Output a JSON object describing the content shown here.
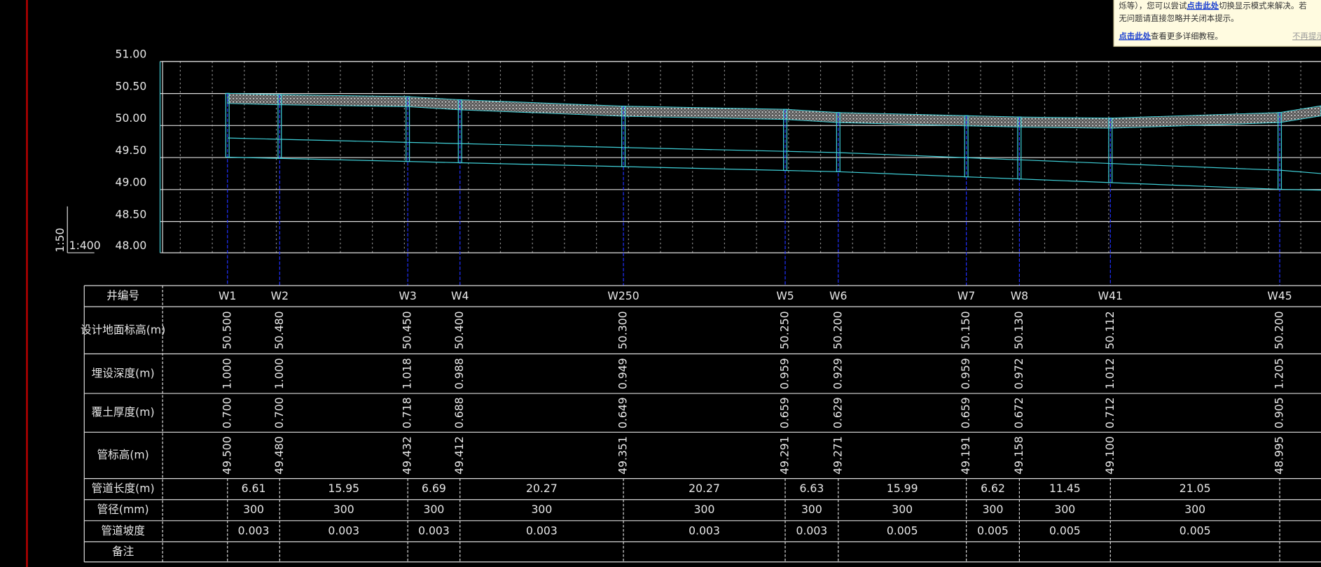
{
  "notice": {
    "line1a": "烁等），您可以尝试",
    "line1link": "点击此处",
    "line1b": "切换显示模式来解决。若",
    "line2": "无问题请直接忽略并关闭本提示。",
    "link2": "点击此处",
    "line3": "查看更多详细教程。",
    "dismiss": "不再提示"
  },
  "scale": {
    "vertical": "1:50",
    "horizontal": "1:400"
  },
  "elevation_ticks": [
    "51.00",
    "50.50",
    "50.00",
    "49.50",
    "49.00",
    "48.50",
    "48.00"
  ],
  "table": {
    "wells": {
      "label": "井编号",
      "cells": [
        "W1",
        "W2",
        "W3",
        "W4",
        "W250",
        "W5",
        "W6",
        "W7",
        "W8",
        "W41",
        "W45"
      ]
    },
    "well_rows": [
      {
        "label": "设计地面标高(m)",
        "cells": [
          "50.500",
          "50.480",
          "50.450",
          "50.400",
          "50.300",
          "50.250",
          "50.200",
          "50.150",
          "50.130",
          "50.112",
          "50.200"
        ]
      },
      {
        "label": "埋设深度(m)",
        "cells": [
          "1.000",
          "1.000",
          "1.018",
          "0.988",
          "0.949",
          "0.959",
          "0.929",
          "0.959",
          "0.972",
          "1.012",
          "1.205"
        ]
      },
      {
        "label": "覆土厚度(m)",
        "cells": [
          "0.700",
          "0.700",
          "0.718",
          "0.688",
          "0.649",
          "0.659",
          "0.629",
          "0.659",
          "0.672",
          "0.712",
          "0.905"
        ]
      },
      {
        "label": "管标高(m)",
        "cells": [
          "49.500",
          "49.480",
          "49.432",
          "49.412",
          "49.351",
          "49.291",
          "49.271",
          "49.191",
          "49.158",
          "49.100",
          "48.995"
        ]
      }
    ],
    "segment_rows": [
      {
        "label": "管道长度(m)",
        "cells": [
          "6.61",
          "15.95",
          "6.69",
          "20.27",
          "20.27",
          "6.63",
          "15.99",
          "6.62",
          "11.45",
          "21.05"
        ]
      },
      {
        "label": "管径(mm)",
        "cells": [
          "300",
          "300",
          "300",
          "300",
          "300",
          "300",
          "300",
          "300",
          "300",
          "300"
        ]
      },
      {
        "label": "管道坡度",
        "cells": [
          "0.003",
          "0.003",
          "0.003",
          "0.003",
          "0.003",
          "0.003",
          "0.005",
          "0.005",
          "0.005",
          "0.005"
        ]
      }
    ],
    "remark": {
      "label": "备注"
    }
  }
}
